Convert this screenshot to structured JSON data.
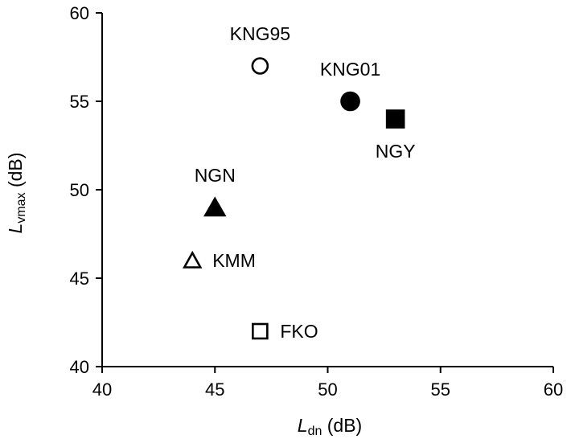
{
  "chart_data": {
    "type": "scatter",
    "xlabel": {
      "main": "L",
      "sub": "dn",
      "unit": " (dB)"
    },
    "ylabel": {
      "main": "L",
      "sub": "vmax",
      "unit": " (dB)"
    },
    "xlim": [
      40,
      60
    ],
    "ylim": [
      40,
      60
    ],
    "x_ticks": [
      "40",
      "45",
      "50",
      "55",
      "60"
    ],
    "y_ticks": [
      "40",
      "45",
      "50",
      "55",
      "60"
    ],
    "grid": false,
    "legend": "none",
    "points": [
      {
        "label": "KNG95",
        "x": 47,
        "y": 57,
        "marker": "circle",
        "filled": false,
        "label_pos": "above"
      },
      {
        "label": "KNG01",
        "x": 51,
        "y": 55,
        "marker": "circle",
        "filled": true,
        "label_pos": "above"
      },
      {
        "label": "NGY",
        "x": 53,
        "y": 54,
        "marker": "square",
        "filled": true,
        "label_pos": "below"
      },
      {
        "label": "NGN",
        "x": 45,
        "y": 49,
        "marker": "triangle",
        "filled": true,
        "label_pos": "above"
      },
      {
        "label": "KMM",
        "x": 44,
        "y": 46,
        "marker": "triangle",
        "filled": false,
        "label_pos": "right"
      },
      {
        "label": "FKO",
        "x": 47,
        "y": 42,
        "marker": "square",
        "filled": false,
        "label_pos": "right"
      }
    ],
    "marker_color": "#000000"
  }
}
